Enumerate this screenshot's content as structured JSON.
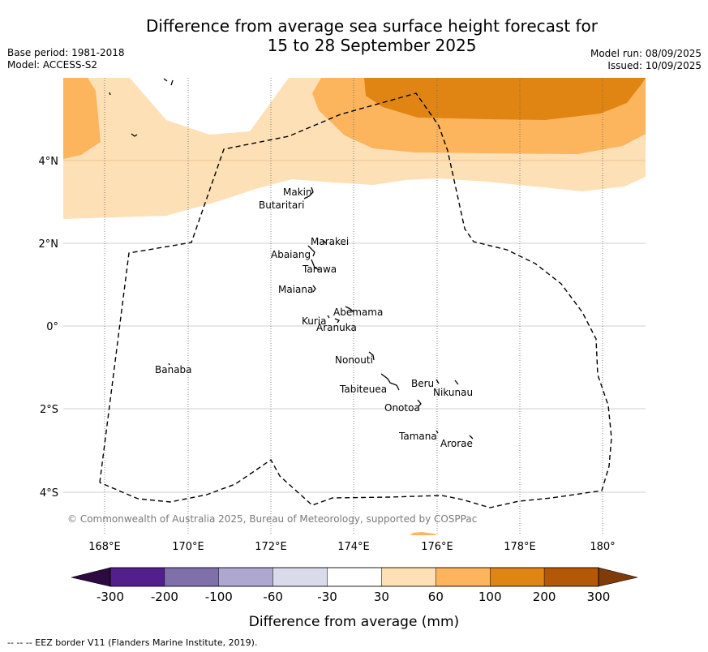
{
  "title": {
    "line1": "Difference from average sea surface height forecast for",
    "line2": "15 to 28 September 2025"
  },
  "meta_left": [
    "Base period: 1981-2018",
    "Model: ACCESS-S2"
  ],
  "meta_right": [
    "Model run: 08/09/2025",
    "Issued: 10/09/2025"
  ],
  "map": {
    "lat_labels": [
      {
        "lat": 4,
        "label": "4°N"
      },
      {
        "lat": 2,
        "label": "2°N"
      },
      {
        "lat": 0,
        "label": "0°"
      },
      {
        "lat": -2,
        "label": "2°S"
      },
      {
        "lat": -4,
        "label": "4°S"
      }
    ],
    "lon_labels": [
      {
        "lon": 168,
        "label": "168°E"
      },
      {
        "lon": 170,
        "label": "170°E"
      },
      {
        "lon": 172,
        "label": "172°E"
      },
      {
        "lon": 174,
        "label": "174°E"
      },
      {
        "lon": 176,
        "label": "176°E"
      },
      {
        "lon": 178,
        "label": "178°E"
      },
      {
        "lon": 180,
        "label": "180°"
      }
    ],
    "islands": [
      {
        "name": "Makin",
        "lon": 172.95,
        "lat": 3.25
      },
      {
        "name": "Butaritari",
        "lon": 172.8,
        "lat": 2.95
      },
      {
        "name": "Marakei",
        "lon": 173.3,
        "lat": 2.0
      },
      {
        "name": "Abaiang",
        "lon": 172.95,
        "lat": 1.8
      },
      {
        "name": "Tarawa",
        "lon": 173.0,
        "lat": 1.4
      },
      {
        "name": "Maiana",
        "lon": 173.0,
        "lat": 0.95
      },
      {
        "name": "Abemama",
        "lon": 173.85,
        "lat": 0.4
      },
      {
        "name": "Kuria",
        "lon": 173.4,
        "lat": 0.22
      },
      {
        "name": "Aranuka",
        "lon": 173.6,
        "lat": 0.15
      },
      {
        "name": "Banaba",
        "lon": 169.55,
        "lat": -0.86
      },
      {
        "name": "Nonouti",
        "lon": 174.4,
        "lat": -0.65
      },
      {
        "name": "Beru",
        "lon": 176.0,
        "lat": -1.35
      },
      {
        "name": "Nikunau",
        "lon": 176.45,
        "lat": -1.35
      },
      {
        "name": "Tabiteuea",
        "lon": 174.8,
        "lat": -1.2
      },
      {
        "name": "Onotoa",
        "lon": 175.55,
        "lat": -1.8
      },
      {
        "name": "Tamana",
        "lon": 175.98,
        "lat": -2.5
      },
      {
        "name": "Arorae",
        "lon": 176.8,
        "lat": -2.65
      }
    ],
    "copyright": "© Commonwealth of Australia 2025, Bureau of Meteorology, supported by COSPPac"
  },
  "colorbar": {
    "label": "Difference from average (mm)",
    "ticks": [
      "-300",
      "-200",
      "-100",
      "-60",
      "-30",
      "30",
      "60",
      "100",
      "200",
      "300"
    ],
    "colors": {
      "under": "#2d0a3f",
      "bins": [
        "#53208b",
        "#7f70a9",
        "#aea7d0",
        "#d9dbeb",
        "#ffffff",
        "#fee0b6",
        "#fcb45d",
        "#e08513",
        "#b35806"
      ],
      "over": "#7f3b08"
    }
  },
  "contour_levels_mm": [
    30,
    60,
    100
  ],
  "footnote": "--  --  -- EEZ border V11 (Flanders Marine Institute, 2019)."
}
